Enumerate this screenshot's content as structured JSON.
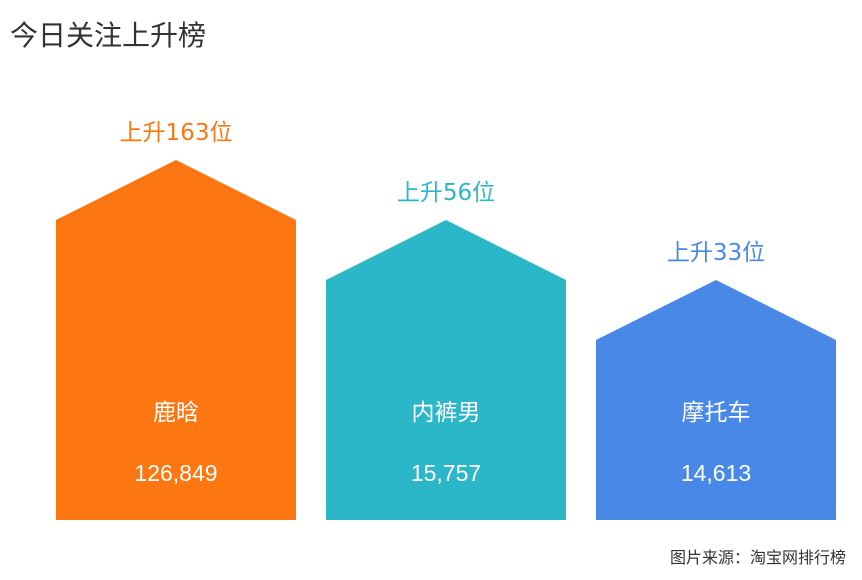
{
  "title": "今日关注上升榜",
  "source": "图片来源：淘宝网排行榜",
  "chart_data": {
    "type": "bar",
    "title": "今日关注上升榜",
    "categories": [
      "鹿晗",
      "内裤男",
      "摩托车"
    ],
    "values": [
      126849,
      15757,
      14613
    ],
    "value_labels": [
      "126,849",
      "15,757",
      "14,613"
    ],
    "rank_change": [
      163,
      56,
      33
    ],
    "rank_labels": [
      "上升163位",
      "上升56位",
      "上升33位"
    ],
    "colors": [
      "#fc7711",
      "#2cb7c8",
      "#4889e8"
    ],
    "grid": false,
    "legend": "none"
  }
}
